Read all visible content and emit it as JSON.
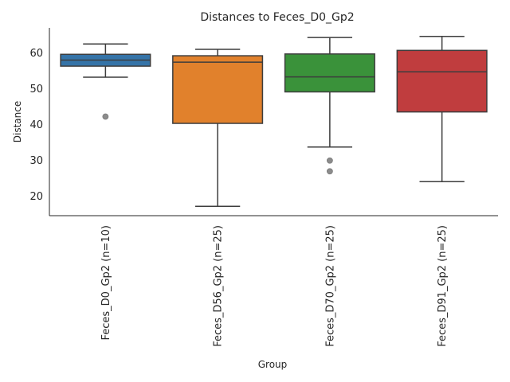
{
  "chart_data": {
    "type": "box",
    "title": "Distances to Feces_D0_Gp2",
    "xlabel": "Group",
    "ylabel": "Distance",
    "ylim": [
      14.5,
      67
    ],
    "yticks": [
      20,
      30,
      40,
      50,
      60
    ],
    "grid": false,
    "legend": "none",
    "categories": [
      "Feces_D0_Gp2 (n=10)",
      "Feces_D56_Gp2 (n=25)",
      "Feces_D70_Gp2 (n=25)",
      "Feces_D91_Gp2 (n=25)"
    ],
    "boxes": [
      {
        "whisker_low": 53.2,
        "q1": 56.3,
        "median": 58.0,
        "q3": 59.6,
        "whisker_high": 62.5,
        "outliers": [
          42.2
        ],
        "color": "#3574a8"
      },
      {
        "whisker_low": 17.1,
        "q1": 40.3,
        "median": 57.4,
        "q3": 59.2,
        "whisker_high": 61.0,
        "outliers": [],
        "color": "#e1812c"
      },
      {
        "whisker_low": 33.7,
        "q1": 49.1,
        "median": 53.3,
        "q3": 59.7,
        "whisker_high": 64.3,
        "outliers": [
          29.9,
          26.9
        ],
        "color": "#3a923a"
      },
      {
        "whisker_low": 24.0,
        "q1": 43.5,
        "median": 54.7,
        "q3": 60.7,
        "whisker_high": 64.6,
        "outliers": [],
        "color": "#c03d3e"
      }
    ]
  }
}
